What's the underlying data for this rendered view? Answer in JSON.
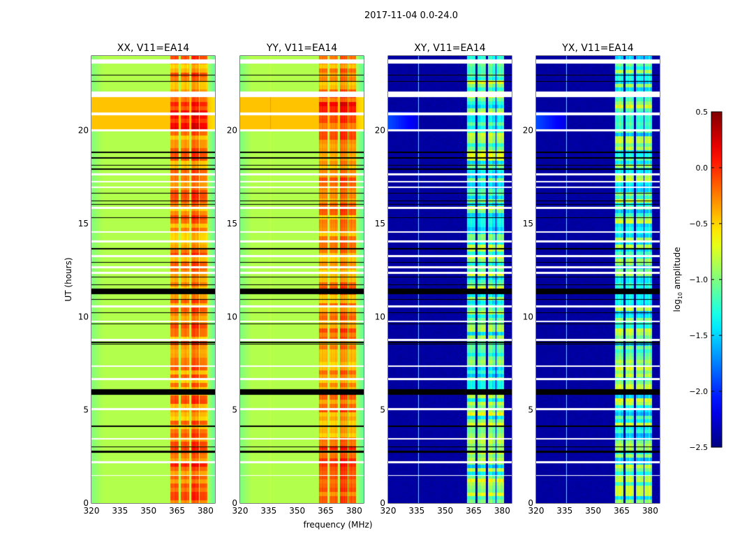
{
  "chart_data": {
    "type": "heatmap",
    "title": "2017-11-04 0.0-24.0",
    "xlabel": "frequency (MHz)",
    "ylabel": "UT (hours)",
    "xlim": [
      320,
      385
    ],
    "ylim": [
      0,
      24
    ],
    "xticks": [
      320,
      335,
      350,
      365,
      380
    ],
    "yticks": [
      0,
      5,
      10,
      15,
      20
    ],
    "panels": [
      {
        "title": "XX, V11=EA14",
        "kind": "parallel"
      },
      {
        "title": "YY, V11=EA14",
        "kind": "parallel"
      },
      {
        "title": "XY, V11=EA14",
        "kind": "cross"
      },
      {
        "title": "YX, V11=EA14",
        "kind": "cross"
      }
    ],
    "subbands_mhz": [
      [
        361.5,
        366
      ],
      [
        367,
        371.5
      ],
      [
        372.5,
        376.5
      ],
      [
        377,
        381
      ]
    ],
    "flagged_white_hours": [
      [
        23.6,
        23.8
      ],
      [
        21.8,
        22.1
      ],
      [
        20.8,
        20.95
      ],
      [
        19.95,
        20.05
      ],
      [
        17.6,
        17.7
      ],
      [
        17.2,
        17.3
      ],
      [
        16.9,
        17.0
      ],
      [
        15.8,
        15.9
      ],
      [
        14.5,
        14.6
      ],
      [
        14.0,
        14.1
      ],
      [
        13.2,
        13.3
      ],
      [
        12.6,
        12.7
      ],
      [
        12.3,
        12.4
      ],
      [
        10.5,
        10.6
      ],
      [
        9.7,
        9.8
      ],
      [
        8.7,
        8.8
      ],
      [
        7.3,
        7.4
      ],
      [
        6.6,
        6.7
      ],
      [
        5.0,
        5.1
      ],
      [
        3.4,
        3.5
      ],
      [
        2.15,
        2.25
      ],
      [
        1.45,
        1.5
      ]
    ],
    "no_data_black_hours": [
      [
        22.95,
        23.0
      ],
      [
        22.6,
        22.65
      ],
      [
        18.8,
        18.85
      ],
      [
        18.5,
        18.55
      ],
      [
        18.1,
        18.15
      ],
      [
        17.9,
        17.95
      ],
      [
        16.6,
        16.65
      ],
      [
        16.2,
        16.25
      ],
      [
        16.0,
        16.05
      ],
      [
        15.3,
        15.35
      ],
      [
        13.6,
        13.7
      ],
      [
        12.9,
        12.95
      ],
      [
        12.1,
        12.15
      ],
      [
        11.7,
        11.75
      ],
      [
        11.2,
        11.5
      ],
      [
        10.9,
        10.95
      ],
      [
        10.2,
        10.25
      ],
      [
        9.6,
        9.65
      ],
      [
        8.6,
        8.65
      ],
      [
        8.5,
        8.55
      ],
      [
        5.8,
        6.1
      ],
      [
        4.1,
        4.15
      ],
      [
        3.0,
        3.05
      ],
      [
        2.7,
        2.8
      ]
    ],
    "levels_log10": {
      "parallel_background": -0.85,
      "parallel_bright_hours_20_22": -0.45,
      "parallel_subbands": -0.3,
      "cross_background": -2.4,
      "cross_subbands": -1.1
    },
    "colorbar": {
      "label": "log",
      "label_sub": "10",
      "label_rest": " amplitude",
      "range": [
        -2.5,
        0.5
      ],
      "ticks": [
        "0.5",
        "0.0",
        "−0.5",
        "−1.0",
        "−1.5",
        "−2.0",
        "−2.5"
      ],
      "tick_values": [
        0.5,
        0.0,
        -0.5,
        -1.0,
        -1.5,
        -2.0,
        -2.5
      ],
      "colormap": "jet"
    }
  }
}
